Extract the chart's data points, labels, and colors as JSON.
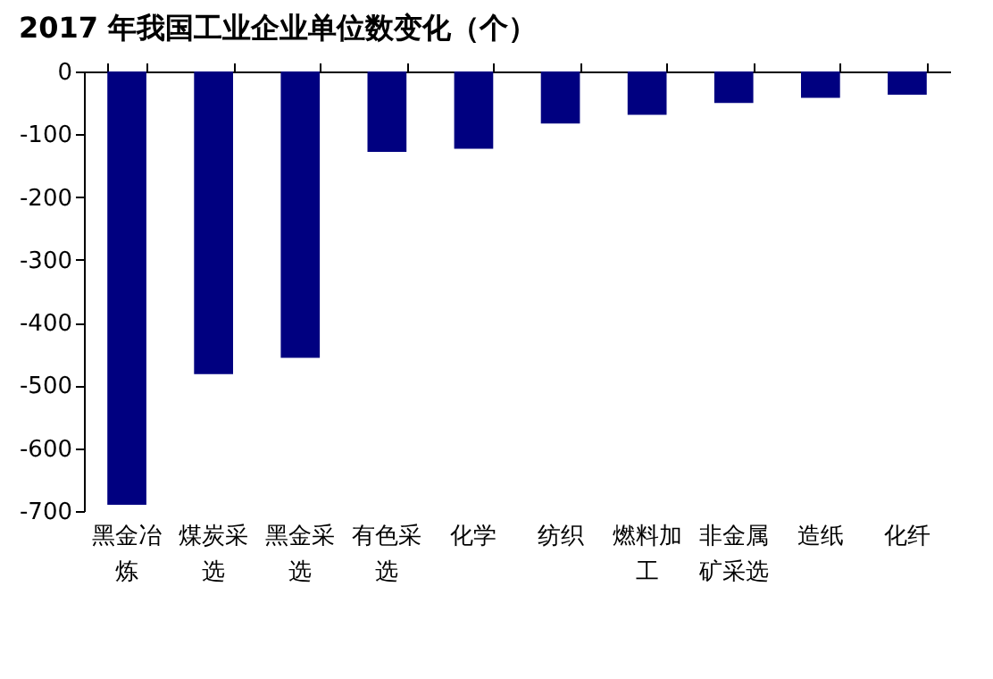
{
  "chart_data": {
    "type": "bar",
    "title": "2017 年我国工业企业单位数变化（个）",
    "categories": [
      "黑金冶炼",
      "煤炭采选",
      "黑金采选",
      "有色采选",
      "化学",
      "纺织",
      "燃料加工",
      "非金属矿采选",
      "造纸",
      "化纤"
    ],
    "values": [
      -690,
      -482,
      -456,
      -128,
      -123,
      -83,
      -69,
      -50,
      -42,
      -37
    ],
    "color": "#000080",
    "ylim": [
      -700,
      0
    ],
    "yticks": [
      0,
      -100,
      -200,
      -300,
      -400,
      -500,
      -600,
      -700
    ],
    "grid": false
  }
}
